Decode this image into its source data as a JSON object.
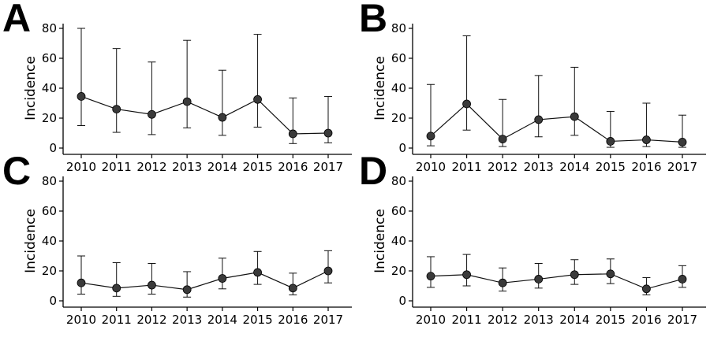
{
  "chart_data": [
    {
      "panel": "A",
      "type": "line",
      "ylabel": "Incidence",
      "ylim": [
        0,
        80
      ],
      "yticks": [
        0,
        20,
        40,
        60,
        80
      ],
      "x": [
        "2010",
        "2011",
        "2012",
        "2013",
        "2014",
        "2015",
        "2016",
        "2017"
      ],
      "series": [
        {
          "values": [
            34.5,
            26,
            22.5,
            31,
            20.5,
            32.5,
            9.5,
            10
          ],
          "lower": [
            15,
            10.5,
            9,
            13.5,
            8.5,
            14,
            3,
            3.5
          ],
          "upper": [
            80,
            66.5,
            57.5,
            72,
            52,
            76,
            33.5,
            34.5
          ]
        }
      ],
      "grid": false,
      "marker_color": "#3a3a3a"
    },
    {
      "panel": "B",
      "type": "line",
      "ylabel": "Incidence",
      "ylim": [
        0,
        80
      ],
      "yticks": [
        0,
        20,
        40,
        60,
        80
      ],
      "x": [
        "2010",
        "2011",
        "2012",
        "2013",
        "2014",
        "2015",
        "2016",
        "2017"
      ],
      "series": [
        {
          "values": [
            8,
            29.5,
            6,
            19,
            21,
            4.5,
            5.5,
            4
          ],
          "lower": [
            1.5,
            12,
            1,
            7.5,
            8.5,
            0.5,
            1,
            0.5
          ],
          "upper": [
            42.5,
            75,
            32.5,
            48.5,
            54,
            24.5,
            30,
            22
          ]
        }
      ],
      "grid": false,
      "marker_color": "#3a3a3a"
    },
    {
      "panel": "C",
      "type": "line",
      "ylabel": "Incidence",
      "ylim": [
        0,
        80
      ],
      "yticks": [
        0,
        20,
        40,
        60,
        80
      ],
      "x": [
        "2010",
        "2011",
        "2012",
        "2013",
        "2014",
        "2015",
        "2016",
        "2017"
      ],
      "series": [
        {
          "values": [
            12,
            8.5,
            10.5,
            7.5,
            15,
            19,
            8.5,
            20
          ],
          "lower": [
            4.5,
            3,
            4.5,
            2.5,
            8,
            11,
            4,
            12
          ],
          "upper": [
            30,
            25.5,
            25,
            19.5,
            28.5,
            33,
            18.5,
            33.5
          ]
        }
      ],
      "grid": false,
      "marker_color": "#3a3a3a"
    },
    {
      "panel": "D",
      "type": "line",
      "ylabel": "Incidence",
      "ylim": [
        0,
        80
      ],
      "yticks": [
        0,
        20,
        40,
        60,
        80
      ],
      "x": [
        "2010",
        "2011",
        "2012",
        "2013",
        "2014",
        "2015",
        "2016",
        "2017"
      ],
      "series": [
        {
          "values": [
            16.5,
            17.5,
            12,
            14.5,
            17.5,
            18,
            8,
            14.5
          ],
          "lower": [
            9,
            10,
            6.5,
            8.5,
            11,
            11.5,
            4,
            9
          ],
          "upper": [
            29.5,
            31,
            22,
            25,
            27.5,
            28,
            15.5,
            23.5
          ]
        }
      ],
      "grid": false,
      "marker_color": "#3a3a3a"
    }
  ]
}
